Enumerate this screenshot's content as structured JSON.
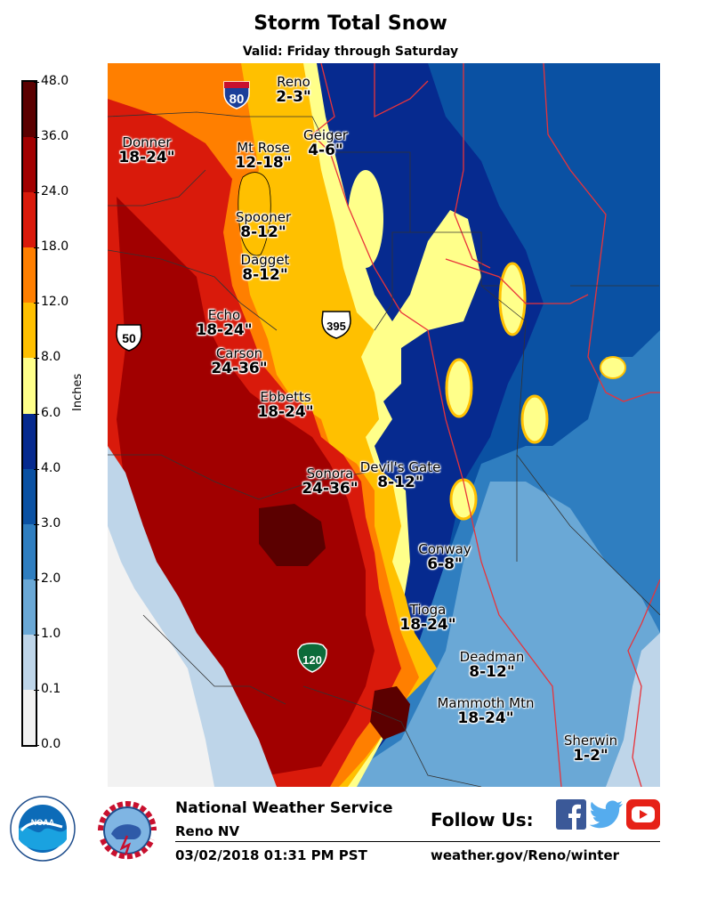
{
  "header": {
    "title": "Storm Total Snow",
    "subtitle": "Valid: Friday through Saturday"
  },
  "colorbar": {
    "units_label": "Inches",
    "ticks": [
      "48.0",
      "36.0",
      "24.0",
      "18.0",
      "12.0",
      "8.0",
      "6.0",
      "4.0",
      "3.0",
      "2.0",
      "1.0",
      "0.1",
      "0.0"
    ],
    "bins": [
      {
        "from": "36.0",
        "to": "48.0",
        "color": "#5b0000"
      },
      {
        "from": "24.0",
        "to": "36.0",
        "color": "#a10000"
      },
      {
        "from": "18.0",
        "to": "24.0",
        "color": "#d91a0b"
      },
      {
        "from": "12.0",
        "to": "18.0",
        "color": "#ff7f00"
      },
      {
        "from": "8.0",
        "to": "12.0",
        "color": "#ffc000"
      },
      {
        "from": "6.0",
        "to": "8.0",
        "color": "#ffff8a"
      },
      {
        "from": "4.0",
        "to": "6.0",
        "color": "#062a8f"
      },
      {
        "from": "3.0",
        "to": "4.0",
        "color": "#0a51a3"
      },
      {
        "from": "2.0",
        "to": "3.0",
        "color": "#2f7ec0"
      },
      {
        "from": "1.0",
        "to": "2.0",
        "color": "#6aa8d6"
      },
      {
        "from": "0.1",
        "to": "1.0",
        "color": "#bed5e9"
      },
      {
        "from": "0.0",
        "to": "0.1",
        "color": "#f2f2f2"
      }
    ]
  },
  "locations": [
    {
      "name": "Reno",
      "amount": "2-3\""
    },
    {
      "name": "Donner",
      "amount": "18-24\""
    },
    {
      "name": "Mt Rose",
      "amount": "12-18\""
    },
    {
      "name": "Geiger",
      "amount": "4-6\""
    },
    {
      "name": "Spooner",
      "amount": "8-12\""
    },
    {
      "name": "Dagget",
      "amount": "8-12\""
    },
    {
      "name": "Echo",
      "amount": "18-24\""
    },
    {
      "name": "Carson",
      "amount": "24-36\""
    },
    {
      "name": "Ebbetts",
      "amount": "18-24\""
    },
    {
      "name": "Sonora",
      "amount": "24-36\""
    },
    {
      "name": "Devil's Gate",
      "amount": "8-12\""
    },
    {
      "name": "Conway",
      "amount": "6-8\""
    },
    {
      "name": "Tioga",
      "amount": "18-24\""
    },
    {
      "name": "Deadman",
      "amount": "8-12\""
    },
    {
      "name": "Mammoth Mtn",
      "amount": "18-24\""
    },
    {
      "name": "Sherwin",
      "amount": "1-2\""
    }
  ],
  "highways": [
    {
      "number": "80",
      "type": "interstate"
    },
    {
      "number": "50",
      "type": "us-route"
    },
    {
      "number": "395",
      "type": "us-route"
    },
    {
      "number": "120",
      "type": "state-route"
    }
  ],
  "footer": {
    "org": "National Weather Service",
    "office": "Reno NV",
    "datetime": "03/02/2018 01:31 PM PST",
    "follow": "Follow Us:",
    "url": "weather.gov/Reno/winter",
    "logos": [
      "noaa-logo",
      "nws-logo"
    ],
    "social_icons": [
      "facebook-icon",
      "twitter-icon",
      "youtube-icon"
    ],
    "social_colors": {
      "facebook": "#3b5998",
      "twitter": "#55acee",
      "youtube": "#e62117"
    }
  }
}
